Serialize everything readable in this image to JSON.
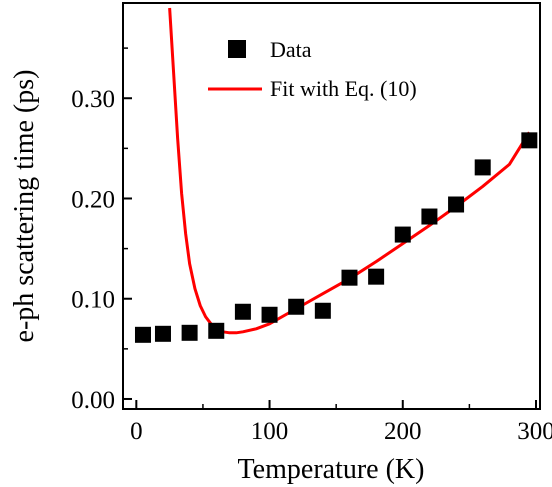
{
  "chart_data": {
    "type": "scatter",
    "xlabel": "Temperature (K)",
    "ylabel": "e-ph scattering time (ps)",
    "xlim": [
      -10,
      303
    ],
    "ylim": [
      -0.01,
      0.395
    ],
    "x_ticks": [
      0,
      100,
      200,
      300
    ],
    "x_tick_labels": [
      "0",
      "100",
      "200",
      "300"
    ],
    "y_ticks": [
      0.0,
      0.1,
      0.2,
      0.3
    ],
    "y_tick_labels": [
      "0.00",
      "0.10",
      "0.20",
      "0.30"
    ],
    "legend_position": "top-right",
    "grid": false,
    "series": [
      {
        "name": "Data",
        "kind": "marker-square",
        "color": "#000000",
        "x": [
          5,
          20,
          40,
          60,
          80,
          100,
          120,
          140,
          160,
          180,
          200,
          220,
          240,
          260,
          295
        ],
        "y": [
          0.064,
          0.065,
          0.066,
          0.068,
          0.087,
          0.084,
          0.092,
          0.088,
          0.121,
          0.122,
          0.164,
          0.182,
          0.194,
          0.231,
          0.258
        ]
      },
      {
        "name": "Fit with Eq. (10)",
        "kind": "line",
        "color": "#ff0000",
        "x": [
          25,
          28,
          31,
          34,
          37,
          40,
          44,
          48,
          52,
          56,
          60,
          65,
          70,
          75,
          80,
          90,
          100,
          120,
          140,
          160,
          180,
          200,
          220,
          240,
          260,
          280,
          295
        ],
        "y": [
          0.39,
          0.325,
          0.26,
          0.205,
          0.165,
          0.135,
          0.11,
          0.093,
          0.082,
          0.075,
          0.07,
          0.067,
          0.066,
          0.066,
          0.067,
          0.07,
          0.075,
          0.09,
          0.105,
          0.12,
          0.137,
          0.155,
          0.173,
          0.192,
          0.212,
          0.234,
          0.266
        ]
      }
    ]
  }
}
